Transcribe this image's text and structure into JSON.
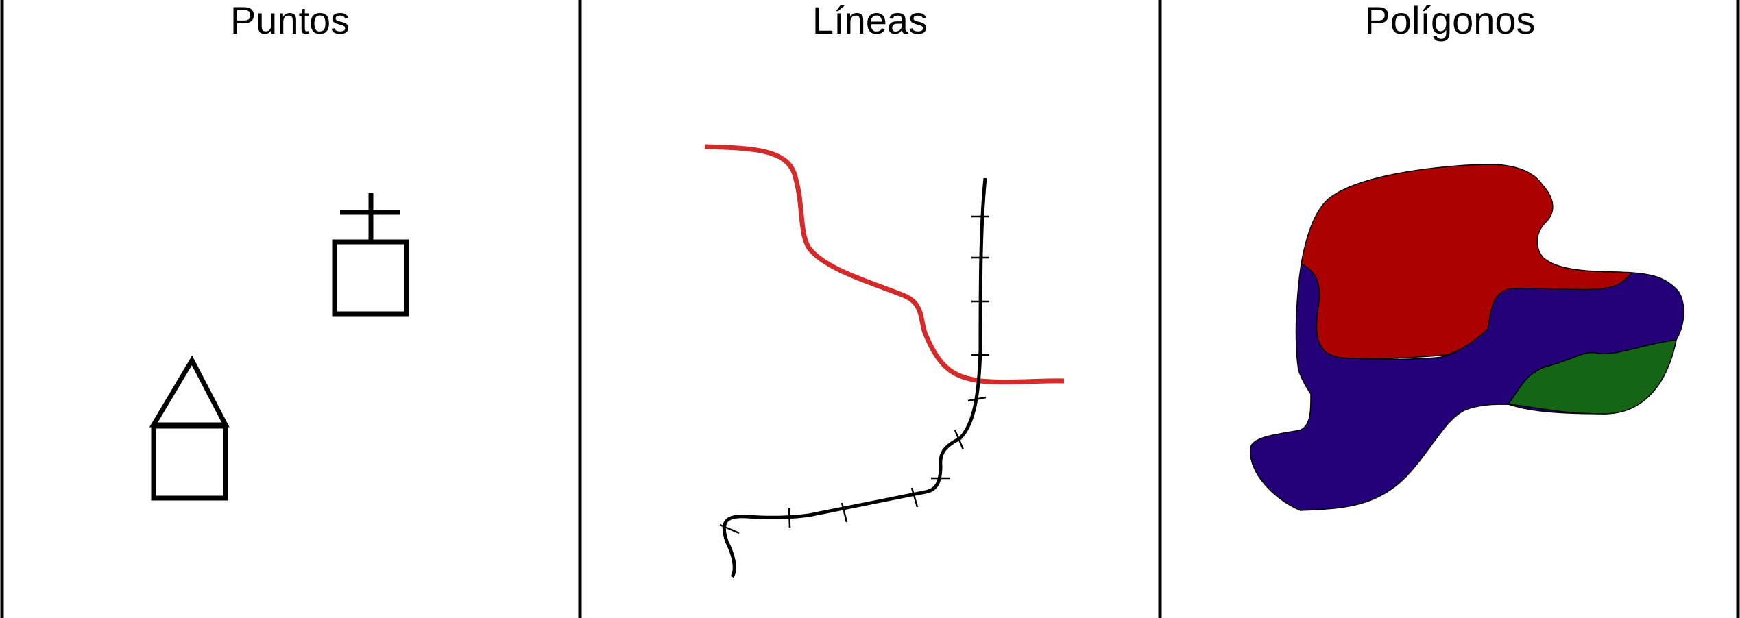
{
  "panels": {
    "points_title": "Puntos",
    "lines_title": "Líneas",
    "polygons_title": "Polígonos"
  },
  "colors": {
    "stroke": "#000000",
    "river": "#d42a2a",
    "region_red": "#aa0000",
    "region_blue": "#230077",
    "region_green": "#146616"
  }
}
